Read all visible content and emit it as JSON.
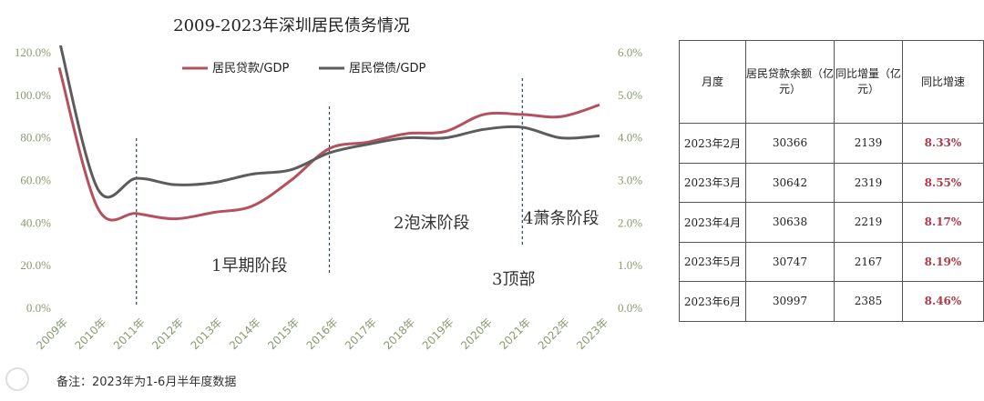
{
  "chart_data": {
    "type": "line",
    "title": "2009-2023年深圳居民债务情况",
    "categories": [
      "2009年",
      "2010年",
      "2011年",
      "2012年",
      "2013年",
      "2014年",
      "2015年",
      "2016年",
      "2017年",
      "2018年",
      "2019年",
      "2020年",
      "2021年",
      "2022年",
      "2023年"
    ],
    "left_axis": {
      "ylim": [
        0,
        120
      ],
      "ticks": [
        "0.0%",
        "20.0%",
        "40.0%",
        "60.0%",
        "80.0%",
        "100.0%",
        "120.0%"
      ]
    },
    "right_axis": {
      "ylim": [
        0,
        6
      ],
      "ticks": [
        "0.0%",
        "1.0%",
        "2.0%",
        "3.0%",
        "4.0%",
        "5.0%",
        "6.0%"
      ]
    },
    "series": [
      {
        "name": "居民贷款/GDP",
        "axis": "left",
        "color": "#b5505f",
        "values": [
          113,
          47,
          44.5,
          42,
          45,
          48,
          60,
          75,
          78,
          82,
          83,
          91,
          91,
          90,
          95.5
        ]
      },
      {
        "name": "居民偿债/GDP",
        "axis": "right",
        "color": "#5c5c5c",
        "values": [
          6.3,
          2.8,
          3.05,
          2.9,
          2.95,
          3.15,
          3.25,
          3.65,
          3.85,
          4.0,
          4.0,
          4.2,
          4.25,
          4.0,
          4.05
        ]
      }
    ],
    "legend": "top",
    "annotations": [
      "1早期阶段",
      "2泡沫阶段",
      "3顶部",
      "4萧条阶段"
    ],
    "grid": false
  },
  "note": "备注：2023年为1-6月半年度数据",
  "table": {
    "headers": [
      "月度",
      "居民贷款余额（亿元）",
      "同比增量（亿元）",
      "同比增速"
    ],
    "rows": [
      [
        "2023年2月",
        "30366",
        "2139",
        "8.33%"
      ],
      [
        "2023年3月",
        "30642",
        "2319",
        "8.55%"
      ],
      [
        "2023年4月",
        "30638",
        "2219",
        "8.17%"
      ],
      [
        "2023年5月",
        "30747",
        "2167",
        "8.19%"
      ],
      [
        "2023年6月",
        "30997",
        "2385",
        "8.46%"
      ]
    ]
  }
}
